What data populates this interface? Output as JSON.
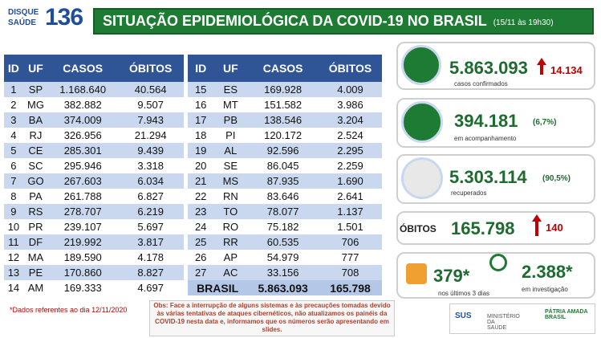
{
  "header": {
    "logo_top": "DISQUE",
    "logo_bottom": "SAÚDE",
    "logo_number": "136",
    "title": "SITUAÇÃO EPIDEMIOLÓGICA DA COVID-19 NO BRASIL",
    "date": "(15/11 às 19h30)"
  },
  "table_left": {
    "columns": [
      "ID",
      "UF",
      "CASOS",
      "ÓBITOS"
    ],
    "rows": [
      [
        "1",
        "SP",
        "1.168.640",
        "40.564"
      ],
      [
        "2",
        "MG",
        "382.882",
        "9.507"
      ],
      [
        "3",
        "BA",
        "374.009",
        "7.943"
      ],
      [
        "4",
        "RJ",
        "326.956",
        "21.294"
      ],
      [
        "5",
        "CE",
        "285.301",
        "9.439"
      ],
      [
        "6",
        "SC",
        "295.946",
        "3.318"
      ],
      [
        "7",
        "GO",
        "267.603",
        "6.034"
      ],
      [
        "8",
        "PA",
        "261.788",
        "6.827"
      ],
      [
        "9",
        "RS",
        "278.707",
        "6.219"
      ],
      [
        "10",
        "PR",
        "239.107",
        "5.697"
      ],
      [
        "11",
        "DF",
        "219.992",
        "3.817"
      ],
      [
        "12",
        "MA",
        "189.590",
        "4.178"
      ],
      [
        "13",
        "PE",
        "170.860",
        "8.827"
      ],
      [
        "14",
        "AM",
        "169.333",
        "4.697"
      ]
    ]
  },
  "table_right": {
    "columns": [
      "ID",
      "UF",
      "CASOS",
      "ÓBITOS"
    ],
    "rows": [
      [
        "15",
        "ES",
        "169.928",
        "4.009"
      ],
      [
        "16",
        "MT",
        "151.582",
        "3.986"
      ],
      [
        "17",
        "PB",
        "138.546",
        "3.204"
      ],
      [
        "18",
        "PI",
        "120.172",
        "2.524"
      ],
      [
        "19",
        "AL",
        "92.596",
        "2.295"
      ],
      [
        "20",
        "SE",
        "86.045",
        "2.259"
      ],
      [
        "21",
        "MS",
        "87.935",
        "1.690"
      ],
      [
        "22",
        "RN",
        "83.646",
        "2.641"
      ],
      [
        "23",
        "TO",
        "78.077",
        "1.137"
      ],
      [
        "24",
        "RO",
        "75.182",
        "1.501"
      ],
      [
        "25",
        "RR",
        "60.535",
        "706"
      ],
      [
        "26",
        "AP",
        "54.979",
        "777"
      ],
      [
        "27",
        "AC",
        "33.156",
        "708"
      ]
    ],
    "total": [
      "BRASIL",
      "5.863.093",
      "165.798"
    ]
  },
  "stats": [
    {
      "value": "5.863.093",
      "change": "14.134",
      "label": "casos confirmados"
    },
    {
      "value": "394.181",
      "percent": "(6,7%)",
      "label": "em acompanhamento"
    },
    {
      "value": "5.303.114",
      "percent": "(90,5%)",
      "label": "recuperados"
    },
    {
      "title": "ÓBITOS",
      "value": "165.798",
      "change": "140"
    },
    {
      "value": "379*",
      "label": "nos últimos 3 dias"
    },
    {
      "value": "2.388*",
      "label": "em investigação"
    }
  ],
  "footnote": "*Dados referentes ao dia 12/11/2020",
  "note": "Obs: Face a interrupção de alguns sistemas e às precauções tomadas devido às várias tentativas de ataques cibernéticos, não atualizamos os painéis da COVID-19 nesta data e, informamos que os números serão apresentando em slides.",
  "footer_logos": [
    "SUS",
    "MINISTÉRIO DA SAÚDE",
    "PÁTRIA AMADA BRASIL"
  ]
}
